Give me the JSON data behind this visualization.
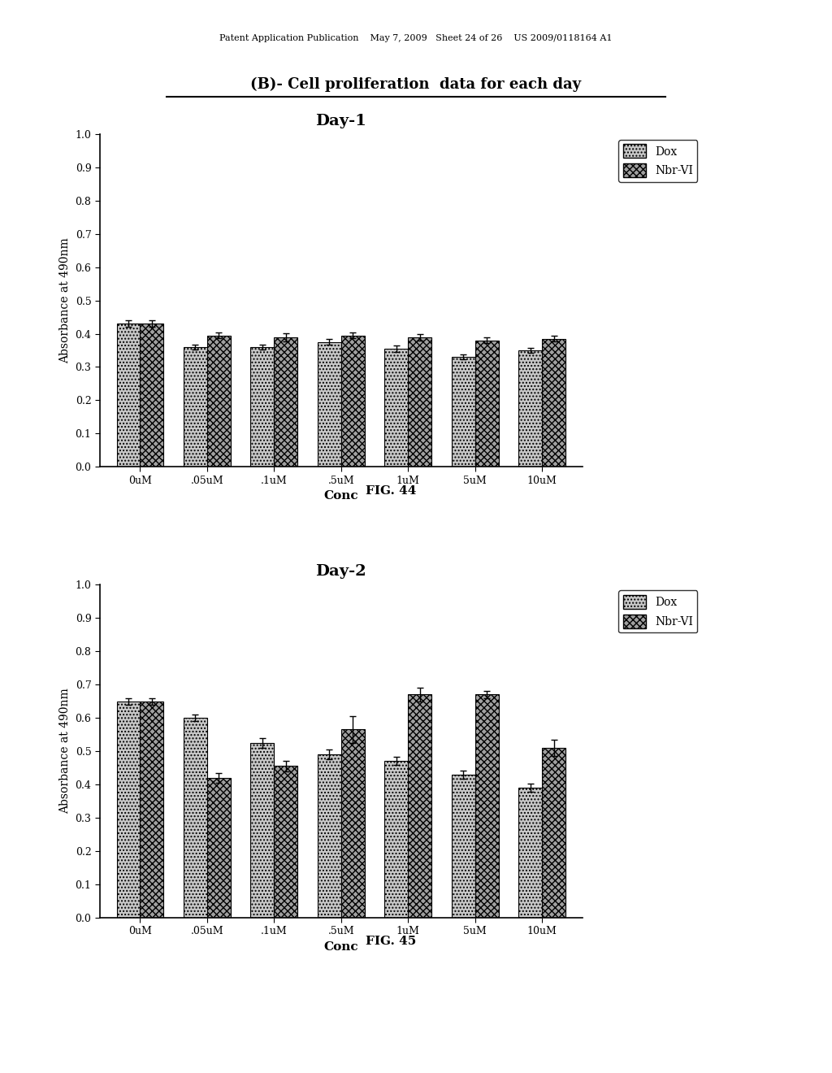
{
  "page_header": "Patent Application Publication    May 7, 2009   Sheet 24 of 26    US 2009/0118164 A1",
  "page_title": "(B)- Cell proliferation  data for each day",
  "categories": [
    "0uM",
    ".05uM",
    ".1uM",
    ".5uM",
    "1uM",
    "5uM",
    "10uM"
  ],
  "day1": {
    "title": "Day-1",
    "fig_label": "FIG. 44",
    "dox": [
      0.43,
      0.36,
      0.36,
      0.375,
      0.355,
      0.33,
      0.35
    ],
    "nbr": [
      0.43,
      0.395,
      0.39,
      0.395,
      0.39,
      0.38,
      0.385
    ],
    "dox_err": [
      0.01,
      0.008,
      0.008,
      0.008,
      0.01,
      0.008,
      0.008
    ],
    "nbr_err": [
      0.01,
      0.008,
      0.012,
      0.008,
      0.01,
      0.008,
      0.008
    ],
    "ylim": [
      0.0,
      1.0
    ],
    "yticks": [
      0.0,
      0.1,
      0.2,
      0.3,
      0.4,
      0.5,
      0.6,
      0.7,
      0.8,
      0.9,
      1.0
    ],
    "ylabel": "Absorbance at 490nm",
    "xlabel": "Conc"
  },
  "day2": {
    "title": "Day-2",
    "fig_label": "FIG. 45",
    "dox": [
      0.65,
      0.6,
      0.525,
      0.49,
      0.47,
      0.43,
      0.39
    ],
    "nbr": [
      0.65,
      0.42,
      0.455,
      0.565,
      0.67,
      0.67,
      0.51
    ],
    "dox_err": [
      0.01,
      0.01,
      0.015,
      0.015,
      0.012,
      0.012,
      0.012
    ],
    "nbr_err": [
      0.01,
      0.015,
      0.015,
      0.04,
      0.02,
      0.01,
      0.025
    ],
    "ylim": [
      0.0,
      1.0
    ],
    "yticks": [
      0.0,
      0.1,
      0.2,
      0.3,
      0.4,
      0.5,
      0.6,
      0.7,
      0.8,
      0.9,
      1.0
    ],
    "ylabel": "Absorbance at 490nm",
    "xlabel": "Conc"
  },
  "dox_color": "#c8c8c8",
  "nbr_color": "#a0a0a0",
  "dox_hatch": "....",
  "nbr_hatch": "xxxx",
  "bar_width": 0.35,
  "legend_labels": [
    "Dox",
    "Nbr-VI"
  ],
  "background_color": "#ffffff"
}
